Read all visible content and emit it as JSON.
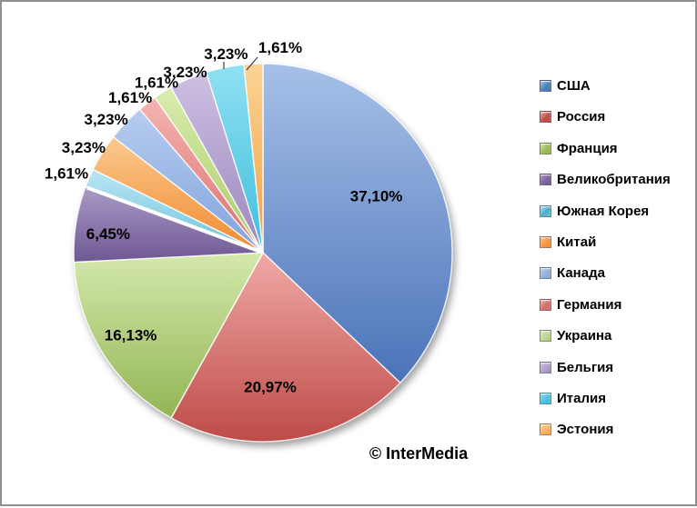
{
  "chart_data": {
    "type": "pie",
    "title": "",
    "legend_position": "right",
    "start_angle_deg": 0,
    "direction": "clockwise",
    "grid": false,
    "categories": [
      "США",
      "Россия",
      "Франция",
      "Великобритания",
      "Южная Корея",
      "Китай",
      "Канада",
      "Германия",
      "Украина",
      "Бельгия",
      "Италия",
      "Эстония"
    ],
    "values": [
      37.1,
      20.97,
      16.13,
      6.45,
      1.61,
      3.23,
      3.23,
      1.61,
      1.61,
      3.23,
      3.23,
      1.61
    ],
    "data_labels": [
      "37,10%",
      "20,97%",
      "16,13%",
      "6,45%",
      "1,61%",
      "3,23%",
      "3,23%",
      "1,61%",
      "1,61%",
      "3,23%",
      "3,23%",
      "1,61%"
    ],
    "decimal_separator": ",",
    "watermark": "© InterMedia",
    "slice_colors": [
      {
        "light": "#A6C0E8",
        "base": "#4A73B8",
        "legend": "#4F81BD"
      },
      {
        "light": "#F0A9A6",
        "base": "#BE4B48",
        "legend": "#C0504D"
      },
      {
        "light": "#D4E8AC",
        "base": "#93B554",
        "legend": "#9BBB59"
      },
      {
        "light": "#A99BC7",
        "base": "#6E5792",
        "legend": "#8064A2"
      },
      {
        "light": "#B9E6F4",
        "base": "#6FC3DE",
        "legend": "#4BACC6"
      },
      {
        "light": "#FBC98F",
        "base": "#F08A2E",
        "legend": "#F79646"
      },
      {
        "light": "#B8CDF0",
        "base": "#7FA3DC",
        "legend": "#95B3D7"
      },
      {
        "light": "#F4B5B1",
        "base": "#D96F6B",
        "legend": "#D0706C"
      },
      {
        "light": "#D9ECAE",
        "base": "#A9CB68",
        "legend": "#C3D69B"
      },
      {
        "light": "#CDC0E2",
        "base": "#9B87BF",
        "legend": "#B2A2C7"
      },
      {
        "light": "#90E0F2",
        "base": "#3FBEDE",
        "legend": "#4EC3E0"
      },
      {
        "light": "#FBD494",
        "base": "#F0A144",
        "legend": "#FAB469"
      }
    ],
    "label_layout": [
      {
        "placement": "inside",
        "r_factor": 0.67,
        "angle_override_deg": 63.4
      },
      {
        "placement": "inside",
        "r_factor": 0.71,
        "angle_override_deg": 176.9
      },
      {
        "placement": "inside",
        "r_factor": 0.824
      },
      {
        "placement": "inside",
        "r_factor": 0.824,
        "angle_override_deg": 277.0
      },
      {
        "placement": "outside",
        "r_factor": 1.12,
        "angle_override_deg": 292.0
      },
      {
        "placement": "outside",
        "r_factor": 1.1,
        "angle_override_deg": 300.5
      },
      {
        "placement": "outside",
        "r_factor": 1.09,
        "angle_override_deg": 310.5
      },
      {
        "placement": "outside",
        "r_factor": 1.08,
        "angle_override_deg": 319.5
      },
      {
        "placement": "outside",
        "r_factor": 1.063
      },
      {
        "placement": "outside",
        "r_factor": 1.042
      },
      {
        "placement": "outside",
        "r_factor": 1.07,
        "angle_override_deg": 349.5,
        "leader": [
          244,
          66,
          244,
          74
        ]
      },
      {
        "placement": "outside",
        "r_factor": 1.09,
        "angle_override_deg": 4.8,
        "leader": [
          281,
          61,
          269,
          75
        ]
      }
    ],
    "gap_boundary_after_slice": 3
  }
}
